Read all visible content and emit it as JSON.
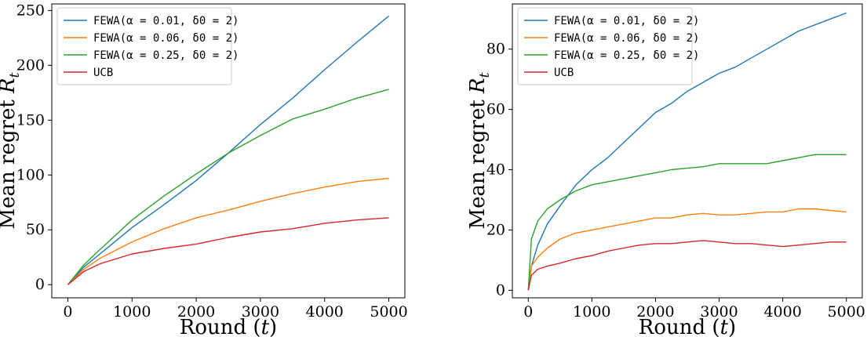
{
  "chart_data": [
    {
      "type": "line",
      "xlabel": "Round (t)",
      "ylabel": "Mean regret R_t",
      "xlim": [
        -250,
        5250
      ],
      "ylim": [
        -12,
        256
      ],
      "xticks": [
        0,
        1000,
        2000,
        3000,
        4000,
        5000
      ],
      "yticks": [
        0,
        50,
        100,
        150,
        200,
        250
      ],
      "legend": "top-left",
      "grid": false,
      "series": [
        {
          "name": "FEWA(α = 0.01, δ0 = 2)",
          "color": "#1f77b4",
          "x": [
            0,
            250,
            500,
            1000,
            1500,
            2000,
            2500,
            3000,
            3500,
            4000,
            4500,
            5000
          ],
          "y": [
            0,
            16,
            28,
            52,
            73,
            95,
            120,
            146,
            170,
            196,
            221,
            245
          ]
        },
        {
          "name": "FEWA(α = 0.06, δ0 = 2)",
          "color": "#ff7f0e",
          "x": [
            0,
            250,
            500,
            1000,
            1500,
            2000,
            2500,
            3000,
            3500,
            4000,
            4500,
            5000
          ],
          "y": [
            0,
            14,
            24,
            39,
            51,
            61,
            68,
            76,
            83,
            89,
            94,
            97
          ]
        },
        {
          "name": "FEWA(α = 0.25, δ0 = 2)",
          "color": "#2ca02c",
          "x": [
            0,
            250,
            500,
            1000,
            1500,
            2000,
            2500,
            3000,
            3500,
            4000,
            4500,
            5000
          ],
          "y": [
            0,
            18,
            32,
            59,
            81,
            101,
            120,
            136,
            151,
            160,
            170,
            178
          ]
        },
        {
          "name": "UCB",
          "color": "#d62728",
          "x": [
            0,
            250,
            500,
            1000,
            1500,
            2000,
            2500,
            3000,
            3500,
            4000,
            4500,
            5000
          ],
          "y": [
            0,
            12,
            19,
            28,
            33,
            37,
            43,
            48,
            51,
            56,
            59,
            61
          ]
        }
      ]
    },
    {
      "type": "line",
      "xlabel": "Round (t)",
      "ylabel": "Mean regret R_t",
      "xlim": [
        -250,
        5250
      ],
      "ylim": [
        -2.5,
        95
      ],
      "xticks": [
        0,
        1000,
        2000,
        3000,
        4000,
        5000
      ],
      "yticks": [
        0,
        20,
        40,
        60,
        80
      ],
      "legend": "top-left",
      "grid": false,
      "series": [
        {
          "name": "FEWA(α = 0.01, δ0 = 2)",
          "color": "#1f77b4",
          "x": [
            0,
            50,
            150,
            300,
            500,
            750,
            1000,
            1250,
            1500,
            1750,
            2000,
            2250,
            2500,
            2750,
            3000,
            3250,
            3500,
            3750,
            4000,
            4250,
            4500,
            4750,
            5000
          ],
          "y": [
            0,
            8,
            15,
            22,
            28,
            35,
            40,
            44,
            49,
            54,
            59,
            62,
            66,
            69,
            72,
            74,
            77,
            80,
            83,
            86,
            88,
            90,
            92
          ]
        },
        {
          "name": "FEWA(α = 0.06, δ0 = 2)",
          "color": "#ff7f0e",
          "x": [
            0,
            50,
            150,
            300,
            500,
            750,
            1000,
            1250,
            1500,
            1750,
            2000,
            2250,
            2500,
            2750,
            3000,
            3250,
            3500,
            3750,
            4000,
            4250,
            4500,
            4750,
            5000
          ],
          "y": [
            0,
            8,
            11,
            14,
            17,
            19,
            20,
            21,
            22,
            23,
            24,
            24,
            25,
            25.5,
            25,
            25,
            25.5,
            26,
            26,
            27,
            27,
            26.5,
            26
          ]
        },
        {
          "name": "FEWA(α = 0.25, δ0 = 2)",
          "color": "#2ca02c",
          "x": [
            0,
            50,
            150,
            300,
            500,
            750,
            1000,
            1250,
            1500,
            1750,
            2000,
            2250,
            2500,
            2750,
            3000,
            3250,
            3500,
            3750,
            4000,
            4250,
            4500,
            4750,
            5000
          ],
          "y": [
            0,
            17,
            23,
            27,
            30,
            33,
            35,
            36,
            37,
            38,
            39,
            40,
            40.5,
            41,
            42,
            42,
            42,
            42,
            43,
            44,
            45,
            45,
            45
          ]
        },
        {
          "name": "UCB",
          "color": "#d62728",
          "x": [
            0,
            50,
            150,
            300,
            500,
            750,
            1000,
            1250,
            1500,
            1750,
            2000,
            2250,
            2500,
            2750,
            3000,
            3250,
            3500,
            3750,
            4000,
            4250,
            4500,
            4750,
            5000
          ],
          "y": [
            0,
            5,
            7,
            8,
            9,
            10.5,
            11.5,
            13,
            14,
            15,
            15.5,
            15.5,
            16,
            16.5,
            16,
            15.5,
            15.5,
            15,
            14.5,
            15,
            15.5,
            16,
            16
          ]
        }
      ]
    }
  ]
}
